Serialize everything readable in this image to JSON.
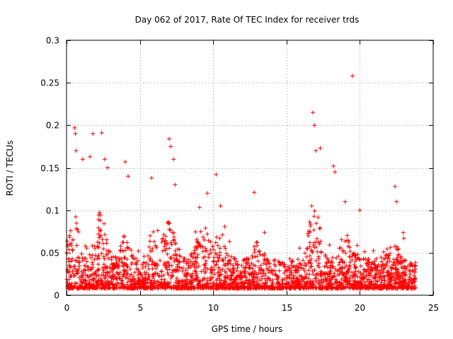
{
  "chart_data": {
    "type": "scatter",
    "title": "Day 062 of 2017, Rate Of TEC Index for receiver trds",
    "xlabel": "GPS time / hours",
    "ylabel": "ROTI / TECUs",
    "xlim": [
      0,
      25
    ],
    "ylim": [
      0,
      0.3
    ],
    "xticks": [
      0,
      5,
      10,
      15,
      20,
      25
    ],
    "yticks": [
      0,
      0.05,
      0.1,
      0.15,
      0.2,
      0.25,
      0.3
    ],
    "xtick_labels": [
      "0",
      "5",
      "10",
      "15",
      "20",
      "25"
    ],
    "ytick_labels": [
      "0",
      "0.05",
      "0.1",
      "0.15",
      "0.2",
      "0.25",
      "0.3"
    ],
    "grid": true,
    "marker": "+",
    "series": [
      {
        "name": "ROTI",
        "color": "#ff0000",
        "x_range": [
          0,
          23.8
        ],
        "sample_points": [
          {
            "x": 0.55,
            "y": 0.197
          },
          {
            "x": 0.6,
            "y": 0.19
          },
          {
            "x": 0.65,
            "y": 0.17
          },
          {
            "x": 1.1,
            "y": 0.16
          },
          {
            "x": 1.6,
            "y": 0.163
          },
          {
            "x": 1.8,
            "y": 0.19
          },
          {
            "x": 2.4,
            "y": 0.191
          },
          {
            "x": 2.6,
            "y": 0.16
          },
          {
            "x": 2.8,
            "y": 0.15
          },
          {
            "x": 4.0,
            "y": 0.157
          },
          {
            "x": 4.2,
            "y": 0.14
          },
          {
            "x": 5.8,
            "y": 0.138
          },
          {
            "x": 7.0,
            "y": 0.184
          },
          {
            "x": 7.1,
            "y": 0.175
          },
          {
            "x": 7.3,
            "y": 0.16
          },
          {
            "x": 7.4,
            "y": 0.13
          },
          {
            "x": 9.6,
            "y": 0.12
          },
          {
            "x": 10.2,
            "y": 0.142
          },
          {
            "x": 10.5,
            "y": 0.105
          },
          {
            "x": 12.8,
            "y": 0.121
          },
          {
            "x": 16.8,
            "y": 0.215
          },
          {
            "x": 16.9,
            "y": 0.2
          },
          {
            "x": 17.0,
            "y": 0.17
          },
          {
            "x": 17.3,
            "y": 0.173
          },
          {
            "x": 18.2,
            "y": 0.152
          },
          {
            "x": 18.3,
            "y": 0.145
          },
          {
            "x": 19.5,
            "y": 0.258
          },
          {
            "x": 19.0,
            "y": 0.11
          },
          {
            "x": 20.0,
            "y": 0.1
          },
          {
            "x": 22.4,
            "y": 0.128
          },
          {
            "x": 22.5,
            "y": 0.11
          }
        ]
      }
    ]
  }
}
